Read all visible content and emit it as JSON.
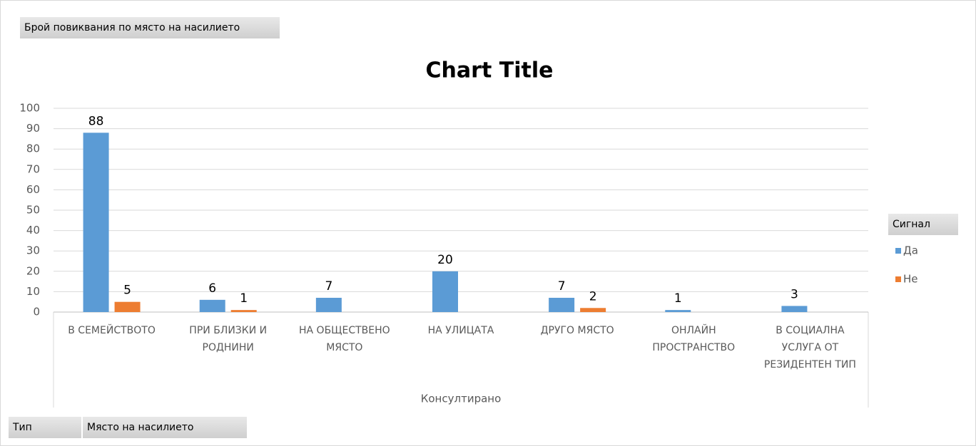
{
  "pivot_field": "Брой повиквания по място на насилието",
  "filters": [
    "Тип",
    "Място на насилието"
  ],
  "chart_data": {
    "type": "bar",
    "title": "Chart Title",
    "x_label": "Консултирано",
    "legend_title": "Сигнал",
    "categories": [
      "В СЕМЕЙСТВОТО",
      "ПРИ БЛИЗКИ И РОДНИНИ",
      "НА ОБЩЕСТВЕНО МЯСТО",
      "НА УЛИЦАТА",
      "ДРУГО МЯСТО",
      "ОНЛАЙН ПРОСТРАНСТВО",
      "В СОЦИАЛНА УСЛУГА ОТ РЕЗИДЕНТЕН ТИП"
    ],
    "series": [
      {
        "name": "Да",
        "color": "#5b9bd5",
        "values": [
          88,
          6,
          7,
          20,
          7,
          1,
          3
        ]
      },
      {
        "name": "Не",
        "color": "#ed7d31",
        "values": [
          5,
          1,
          null,
          null,
          2,
          null,
          null
        ]
      }
    ],
    "ylim": [
      0,
      100
    ],
    "yticks": [
      0,
      10,
      20,
      30,
      40,
      50,
      60,
      70,
      80,
      90,
      100
    ],
    "grid": true,
    "legend": "right"
  }
}
